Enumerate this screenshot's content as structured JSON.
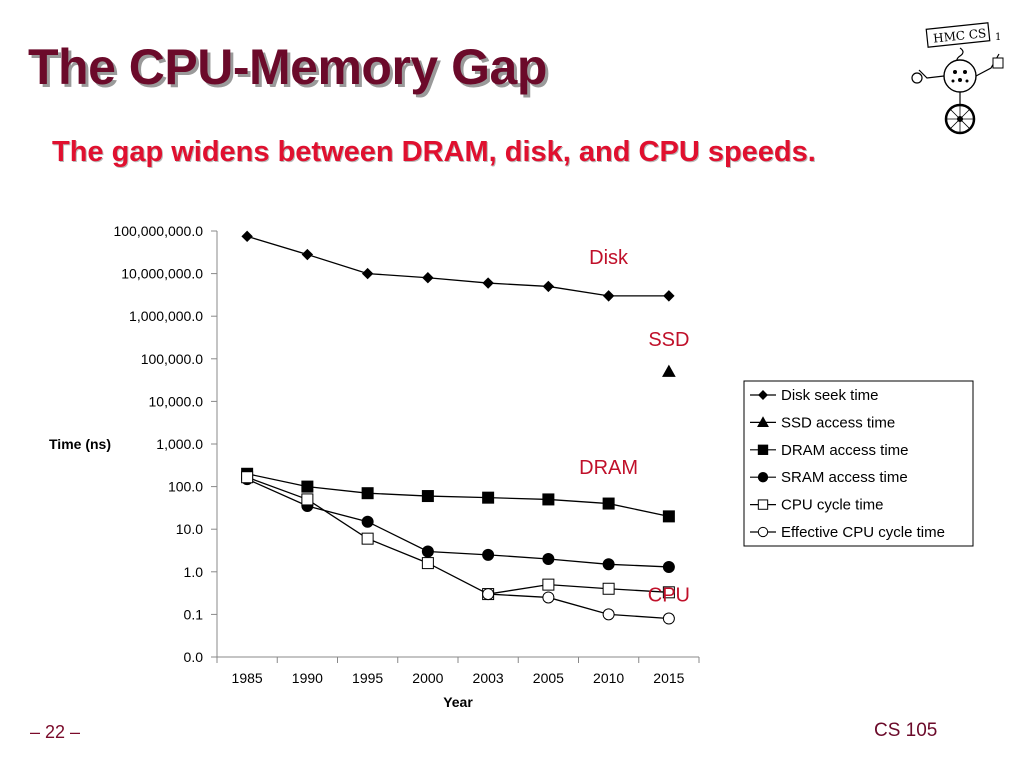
{
  "slide": {
    "title": "The CPU-Memory Gap",
    "subtitle": "The gap widens between DRAM, disk, and CPU speeds.",
    "page_number": "– 22 –",
    "course": "CS 105",
    "logo_text": "HMC CS"
  },
  "chart_data": {
    "type": "line",
    "title": "",
    "xlabel": "Year",
    "ylabel": "Time (ns)",
    "y_scale": "log",
    "ylim": [
      0.01,
      100000000
    ],
    "x": [
      "1985",
      "1990",
      "1995",
      "2000",
      "2003",
      "2005",
      "2010",
      "2015"
    ],
    "y_ticks": [
      {
        "value": 0.01,
        "label": "0.0"
      },
      {
        "value": 0.1,
        "label": "0.1"
      },
      {
        "value": 1,
        "label": "1.0"
      },
      {
        "value": 10,
        "label": "10.0"
      },
      {
        "value": 100,
        "label": "100.0"
      },
      {
        "value": 1000,
        "label": "1,000.0"
      },
      {
        "value": 10000,
        "label": "10,000.0"
      },
      {
        "value": 100000,
        "label": "100,000.0"
      },
      {
        "value": 1000000,
        "label": "1,000,000.0"
      },
      {
        "value": 10000000,
        "label": "10,000,000.0"
      },
      {
        "value": 100000000,
        "label": "100,000,000.0"
      }
    ],
    "grid": false,
    "legend_position": "right",
    "series": [
      {
        "name": "Disk seek time",
        "marker": "diamond",
        "fill": "#000000",
        "values": [
          75000000,
          28000000,
          10000000,
          8000000,
          6000000,
          5000000,
          3000000,
          3000000
        ]
      },
      {
        "name": "SSD access time",
        "marker": "triangle",
        "fill": "#000000",
        "values": [
          null,
          null,
          null,
          null,
          null,
          null,
          null,
          50000
        ]
      },
      {
        "name": "DRAM access time",
        "marker": "square",
        "fill": "#000000",
        "values": [
          200,
          100,
          70,
          60,
          55,
          50,
          40,
          20
        ]
      },
      {
        "name": "SRAM access time",
        "marker": "circle",
        "fill": "#000000",
        "values": [
          150,
          35,
          15,
          3,
          2.5,
          2,
          1.5,
          1.3
        ]
      },
      {
        "name": "CPU cycle time",
        "marker": "square",
        "fill": "#ffffff",
        "values": [
          166,
          50,
          6,
          1.6,
          0.3,
          0.5,
          0.4,
          0.33
        ]
      },
      {
        "name": "Effective CPU cycle time",
        "marker": "circle",
        "fill": "#ffffff",
        "values": [
          null,
          null,
          null,
          null,
          0.3,
          0.25,
          0.1,
          0.08
        ]
      }
    ],
    "annotations": [
      {
        "text": "Disk",
        "x": "2010",
        "y": 17000000
      },
      {
        "text": "SSD",
        "x": "2015",
        "y": 200000
      },
      {
        "text": "DRAM",
        "x": "2010",
        "y": 200
      },
      {
        "text": "CPU",
        "x": "2015",
        "y": 0.2
      }
    ]
  }
}
